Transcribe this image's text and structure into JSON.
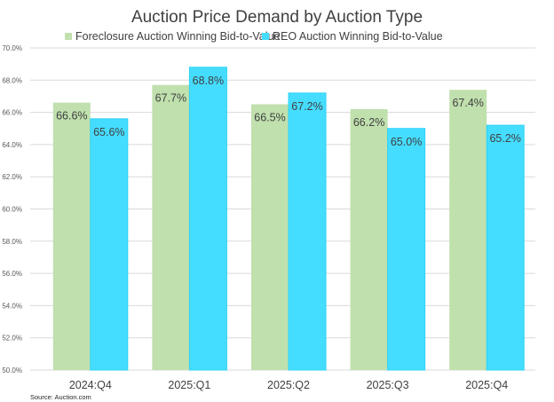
{
  "chart_data": {
    "type": "bar",
    "title": "Auction Price Demand by Auction Type",
    "xlabel": "",
    "ylabel": "",
    "categories": [
      "2024:Q4",
      "2025:Q1",
      "2025:Q2",
      "2025:Q3",
      "2025:Q4"
    ],
    "series": [
      {
        "name": "Foreclosure Auction Winning Bid-to-Value",
        "color": "#c0e0ae",
        "values": [
          66.6,
          67.7,
          66.5,
          66.2,
          67.4
        ],
        "labels": [
          "66.6%",
          "67.7%",
          "66.5%",
          "66.2%",
          "67.4%"
        ]
      },
      {
        "name": "REO Auction Winning Bid-to-Value",
        "color": "#45ddff",
        "values": [
          65.6,
          68.8,
          67.2,
          65.0,
          65.2
        ],
        "labels": [
          "65.6%",
          "68.8%",
          "67.2%",
          "65.0%",
          "65.2%"
        ]
      }
    ],
    "ylim": [
      50,
      70
    ],
    "yticks": [
      50,
      52,
      54,
      56,
      58,
      60,
      62,
      64,
      66,
      68,
      70
    ],
    "ytick_labels": [
      "50.0%",
      "52.0%",
      "54.0%",
      "56.0%",
      "58.0%",
      "60.0%",
      "62.0%",
      "64.0%",
      "66.0%",
      "68.0%",
      "70.0%"
    ],
    "grid": true,
    "legend_position": "top",
    "source": "Source: Auction.com"
  }
}
